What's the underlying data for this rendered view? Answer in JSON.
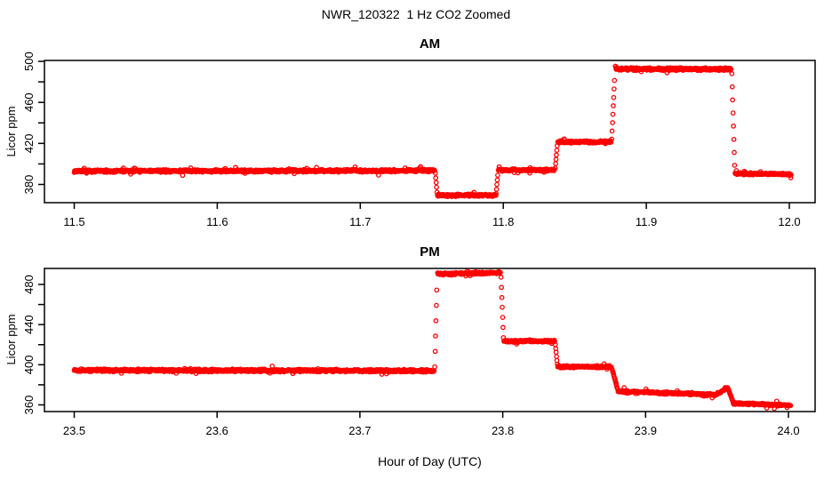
{
  "figure": {
    "title": "NWR_120322  1 Hz CO2 Zoomed",
    "xlabel": "Hour of Day (UTC)",
    "ylabel": "Licor ppm",
    "background": "#ffffff",
    "point_color": "#ff0000",
    "axis_color": "#000000"
  },
  "chart_data": [
    {
      "type": "scatter",
      "panel": "AM",
      "title": "AM",
      "ylabel": "Licor ppm",
      "marker": "open-circle",
      "color": "#ff0000",
      "sample_rate_hz": 1,
      "xlim": [
        11.5,
        12.0
      ],
      "x_tick_labels": [
        "11.5",
        "11.6",
        "11.7",
        "11.8",
        "11.9",
        "12.0"
      ],
      "y_ticks_all": [
        380,
        400,
        420,
        440,
        460,
        480,
        500
      ],
      "y_tick_labels": [
        "380",
        "420",
        "460",
        "500"
      ],
      "seed": 7,
      "segments": [
        {
          "t0": 11.5,
          "t1": 11.752,
          "v0": 393.0,
          "v1": 393.5,
          "noise": 1.2
        },
        {
          "t0": 11.7525,
          "t1": 11.7537,
          "v0": 391.0,
          "v1": 371.0,
          "noise": 0.3
        },
        {
          "t0": 11.754,
          "t1": 11.795,
          "v0": 369.5,
          "v1": 369.5,
          "noise": 1.1
        },
        {
          "t0": 11.795,
          "t1": 11.7963,
          "v0": 371.0,
          "v1": 392.0,
          "noise": 0.3
        },
        {
          "t0": 11.7966,
          "t1": 11.836,
          "v0": 394.0,
          "v1": 394.0,
          "noise": 1.1
        },
        {
          "t0": 11.8363,
          "t1": 11.8378,
          "v0": 396.0,
          "v1": 419.0,
          "noise": 0.3
        },
        {
          "t0": 11.8381,
          "t1": 11.8755,
          "v0": 421.5,
          "v1": 421.5,
          "noise": 1.1
        },
        {
          "t0": 11.8758,
          "t1": 11.878,
          "v0": 424.0,
          "v1": 489.0,
          "noise": 0.3
        },
        {
          "t0": 11.8784,
          "t1": 11.9595,
          "v0": 492.5,
          "v1": 492.5,
          "noise": 1.3
        },
        {
          "t0": 11.9598,
          "t1": 11.9618,
          "v0": 488.0,
          "v1": 396.0,
          "noise": 0.3
        },
        {
          "t0": 11.9621,
          "t1": 12.0015,
          "v0": 390.5,
          "v1": 390.0,
          "noise": 1.1
        }
      ]
    },
    {
      "type": "scatter",
      "panel": "PM",
      "title": "PM",
      "ylabel": "Licor ppm",
      "marker": "open-circle",
      "color": "#ff0000",
      "sample_rate_hz": 1,
      "xlim": [
        23.5,
        24.0
      ],
      "x_tick_labels": [
        "23.5",
        "23.6",
        "23.7",
        "23.8",
        "23.9",
        "24.0"
      ],
      "y_ticks_all": [
        360,
        380,
        400,
        420,
        440,
        460,
        480
      ],
      "y_tick_labels": [
        "360",
        "400",
        "440",
        "480"
      ],
      "seed": 13,
      "segments": [
        {
          "t0": 23.5,
          "t1": 23.752,
          "v0": 394.5,
          "v1": 394.0,
          "noise": 1.3
        },
        {
          "t0": 23.7524,
          "t1": 23.754,
          "v0": 398.0,
          "v1": 486.0,
          "noise": 0.3
        },
        {
          "t0": 23.7544,
          "t1": 23.7985,
          "v0": 490.5,
          "v1": 491.5,
          "noise": 1.3
        },
        {
          "t0": 23.7988,
          "t1": 23.8005,
          "v0": 487.0,
          "v1": 426.0,
          "noise": 0.3
        },
        {
          "t0": 23.8008,
          "t1": 23.8365,
          "v0": 423.5,
          "v1": 423.5,
          "noise": 1.1
        },
        {
          "t0": 23.8368,
          "t1": 23.8382,
          "v0": 420.0,
          "v1": 400.5,
          "noise": 0.3
        },
        {
          "t0": 23.8385,
          "t1": 23.8762,
          "v0": 398.0,
          "v1": 398.0,
          "noise": 1.1
        },
        {
          "t0": 23.8765,
          "t1": 23.8805,
          "v0": 396.0,
          "v1": 375.0,
          "noise": 0.5
        },
        {
          "t0": 23.8808,
          "t1": 23.949,
          "v0": 373.5,
          "v1": 370.0,
          "noise": 1.1
        },
        {
          "t0": 23.949,
          "t1": 23.9575,
          "v0": 370.0,
          "v1": 377.0,
          "noise": 0.8
        },
        {
          "t0": 23.9578,
          "t1": 23.9612,
          "v0": 376.0,
          "v1": 363.0,
          "noise": 0.4
        },
        {
          "t0": 23.9615,
          "t1": 24.0015,
          "v0": 361.5,
          "v1": 359.5,
          "noise": 1.0
        }
      ]
    }
  ]
}
